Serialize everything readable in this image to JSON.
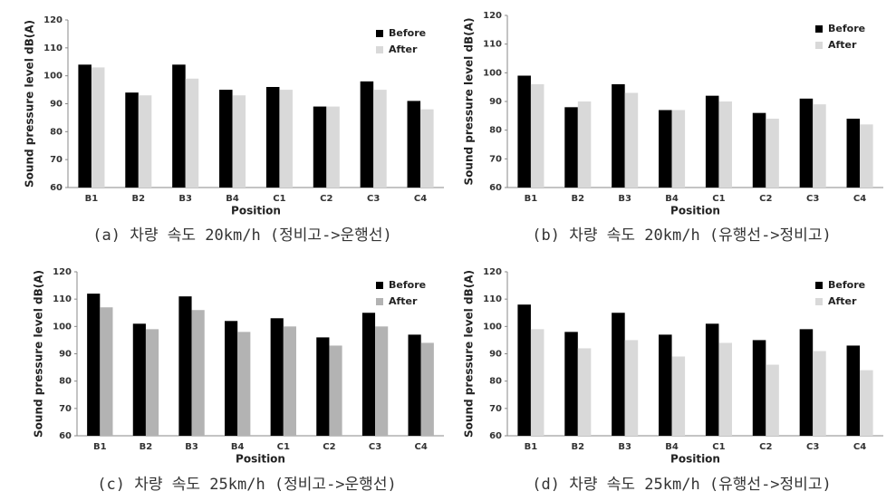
{
  "chart_data": [
    {
      "type": "bar",
      "caption": "(a) 차량 속도 20km/h (정비고->운행선)",
      "xlabel": "Position",
      "ylabel": "Sound pressure level dB(A)",
      "categories": [
        "B1",
        "B2",
        "B3",
        "B4",
        "C1",
        "C2",
        "C3",
        "C4"
      ],
      "series": [
        {
          "name": "Before",
          "color": "#000000",
          "values": [
            104,
            94,
            104,
            95,
            96,
            89,
            98,
            91
          ]
        },
        {
          "name": "After",
          "color": "#d9d9d9",
          "values": [
            103,
            93,
            99,
            93,
            95,
            89,
            95,
            88
          ]
        }
      ],
      "ylim": [
        60,
        120
      ],
      "yticks": [
        60,
        70,
        80,
        90,
        100,
        110,
        120
      ],
      "grid": false,
      "legend": "upper right"
    },
    {
      "type": "bar",
      "caption": "(b) 차량 속도 20km/h (유행선->정비고)",
      "xlabel": "Position",
      "ylabel": "Sound pressure level dB(A)",
      "categories": [
        "B1",
        "B2",
        "B3",
        "B4",
        "C1",
        "C2",
        "C3",
        "C4"
      ],
      "series": [
        {
          "name": "Before",
          "color": "#000000",
          "values": [
            99,
            88,
            96,
            87,
            92,
            86,
            91,
            84
          ]
        },
        {
          "name": "After",
          "color": "#d9d9d9",
          "values": [
            96,
            90,
            93,
            87,
            90,
            84,
            89,
            82
          ]
        }
      ],
      "ylim": [
        60,
        120
      ],
      "yticks": [
        60,
        70,
        80,
        90,
        100,
        110,
        120
      ],
      "grid": false,
      "legend": "upper right"
    },
    {
      "type": "bar",
      "caption": "(c) 차량 속도 25km/h (정비고->운행선)",
      "xlabel": "Position",
      "ylabel": "Sound pressure level dB(A)",
      "categories": [
        "B1",
        "B2",
        "B3",
        "B4",
        "C1",
        "C2",
        "C3",
        "C4"
      ],
      "series": [
        {
          "name": "Before",
          "color": "#000000",
          "values": [
            112,
            101,
            111,
            102,
            103,
            96,
            105,
            97
          ]
        },
        {
          "name": "After",
          "color": "#b3b3b3",
          "values": [
            107,
            99,
            106,
            98,
            100,
            93,
            100,
            94
          ]
        }
      ],
      "ylim": [
        60,
        120
      ],
      "yticks": [
        60,
        70,
        80,
        90,
        100,
        110,
        120
      ],
      "grid": false,
      "legend": "upper right"
    },
    {
      "type": "bar",
      "caption": "(d) 차량 속도 25km/h (유행선->정비고)",
      "xlabel": "Position",
      "ylabel": "Sound pressure level dB(A)",
      "categories": [
        "B1",
        "B2",
        "B3",
        "B4",
        "C1",
        "C2",
        "C3",
        "C4"
      ],
      "series": [
        {
          "name": "Before",
          "color": "#000000",
          "values": [
            108,
            98,
            105,
            97,
            101,
            95,
            99,
            93
          ]
        },
        {
          "name": "After",
          "color": "#d9d9d9",
          "values": [
            99,
            92,
            95,
            89,
            94,
            86,
            91,
            84
          ]
        }
      ],
      "ylim": [
        60,
        120
      ],
      "yticks": [
        60,
        70,
        80,
        90,
        100,
        110,
        120
      ],
      "grid": false,
      "legend": "upper right"
    }
  ]
}
